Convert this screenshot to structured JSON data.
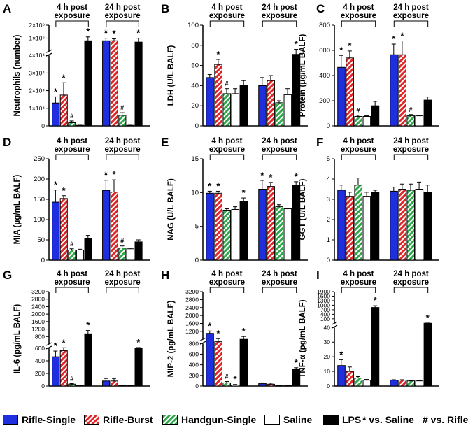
{
  "colors": {
    "rifle_single": "#1f2fe0",
    "rifle_burst": "#e02626",
    "handgun_single": "#2fa84a",
    "saline": "#ffffff",
    "lps": "#000000"
  },
  "legend": {
    "entries": [
      {
        "key": "rifle_single",
        "label": "Rifle-Single",
        "pattern": "solid"
      },
      {
        "key": "rifle_burst",
        "label": "Rifle-Burst",
        "pattern": "hatch"
      },
      {
        "key": "handgun_single",
        "label": "Handgun-Single",
        "pattern": "hatch"
      },
      {
        "key": "saline",
        "label": "Saline",
        "pattern": "solid"
      },
      {
        "key": "lps",
        "label": "LPS",
        "pattern": "solid"
      }
    ],
    "note_saline": "* vs. Saline",
    "note_rifle": "# vs. Rifle"
  },
  "chart_data": [
    {
      "panel": "A",
      "type": "bar",
      "ylabel": "Neutrophils (number)",
      "groups": [
        "4 h post exposure",
        "24 h post exposure"
      ],
      "series": [
        "Rifle-Single",
        "Rifle-Burst",
        "Handgun-Single",
        "Saline",
        "LPS"
      ],
      "broken_axis": true,
      "lower_ticks": [
        "0",
        "1×10⁴",
        "2×10⁴",
        "3×10⁴",
        "4×10⁴"
      ],
      "upper_ticks": [
        "1×10⁶",
        "2×10⁶"
      ],
      "values": [
        [
          13000,
          17500,
          1800,
          300,
          1400000
        ],
        [
          1400000,
          1400000,
          6000,
          300,
          1350000
        ]
      ],
      "errors": [
        [
          3500,
          7000,
          1000,
          100,
          150000
        ],
        [
          100000,
          80000,
          1500,
          100,
          150000
        ]
      ],
      "marks": [
        [
          "*",
          "*",
          "#",
          "",
          "*"
        ],
        [
          "*",
          "*",
          "#",
          "",
          "*"
        ]
      ]
    },
    {
      "panel": "B",
      "type": "bar",
      "ylabel": "LDH (U/L BALF)",
      "groups": [
        "4 h post exposure",
        "24 h post exposure"
      ],
      "ylim": [
        0,
        100
      ],
      "ticks": [
        "0",
        "20",
        "40",
        "60",
        "80",
        "100"
      ],
      "values": [
        [
          48,
          61,
          32,
          32,
          40
        ],
        [
          40,
          45,
          23,
          31,
          71
        ]
      ],
      "errors": [
        [
          3,
          5,
          5,
          5,
          5
        ],
        [
          8,
          5,
          2,
          6,
          5
        ]
      ],
      "marks": [
        [
          "",
          "*",
          "#",
          "",
          ""
        ],
        [
          "",
          "",
          "",
          "",
          "*"
        ]
      ]
    },
    {
      "panel": "C",
      "type": "bar",
      "ylabel": "Protein (μg/mL BALF)",
      "groups": [
        "4 h post exposure",
        "24 h post exposure"
      ],
      "ylim": [
        0,
        800
      ],
      "ticks": [
        "0",
        "200",
        "400",
        "600",
        "800"
      ],
      "values": [
        [
          465,
          540,
          75,
          75,
          160
        ],
        [
          565,
          565,
          80,
          80,
          205
        ]
      ],
      "errors": [
        [
          95,
          55,
          10,
          5,
          35
        ],
        [
          85,
          110,
          10,
          5,
          25
        ]
      ],
      "marks": [
        [
          "*",
          "*",
          "#",
          "",
          ""
        ],
        [
          "*",
          "*",
          "#",
          "",
          ""
        ]
      ]
    },
    {
      "panel": "D",
      "type": "bar",
      "ylabel": "MIA (μg/mL BALF)",
      "groups": [
        "4 h post exposure",
        "24 h post exposure"
      ],
      "ylim": [
        0,
        250
      ],
      "ticks": [
        "0",
        "50",
        "100",
        "150",
        "200",
        "250"
      ],
      "values": [
        [
          143,
          152,
          25,
          25,
          53
        ],
        [
          172,
          168,
          30,
          28,
          45
        ]
      ],
      "errors": [
        [
          30,
          7,
          3,
          2,
          8
        ],
        [
          25,
          30,
          5,
          2,
          5
        ]
      ],
      "marks": [
        [
          "*",
          "*",
          "#",
          "",
          ""
        ],
        [
          "*",
          "*",
          "#",
          "",
          ""
        ]
      ]
    },
    {
      "panel": "E",
      "type": "bar",
      "ylabel": "NAG (U/L BALF)",
      "groups": [
        "4 h post exposure",
        "24 h post exposure"
      ],
      "ylim": [
        0,
        15
      ],
      "ticks": [
        "0",
        "5",
        "10",
        "15"
      ],
      "values": [
        [
          9.9,
          9.9,
          7.4,
          7.5,
          8.7
        ],
        [
          10.5,
          10.9,
          7.9,
          7.6,
          11.1
        ]
      ],
      "errors": [
        [
          0.3,
          0.3,
          0.2,
          0.4,
          0.5
        ],
        [
          1.3,
          0.6,
          0.3,
          0.1,
          0.5
        ]
      ],
      "marks": [
        [
          "*",
          "*",
          "",
          "",
          "*"
        ],
        [
          "*",
          "*",
          "",
          "",
          "*"
        ]
      ]
    },
    {
      "panel": "F",
      "type": "bar",
      "ylabel": "GGT (U/L BALF)",
      "groups": [
        "4 h post exposure",
        "24 h post exposure"
      ],
      "ylim": [
        0,
        5
      ],
      "ticks": [
        "0",
        "1",
        "2",
        "3",
        "4",
        "5"
      ],
      "values": [
        [
          3.45,
          3.15,
          3.7,
          3.15,
          3.35
        ],
        [
          3.4,
          3.5,
          3.45,
          3.5,
          3.35
        ]
      ],
      "errors": [
        [
          0.25,
          0.2,
          0.35,
          0.2,
          0.1
        ],
        [
          0.2,
          0.25,
          0.3,
          0.35,
          0.35
        ]
      ],
      "marks": [
        [
          "",
          "",
          "",
          "",
          ""
        ],
        [
          "",
          "",
          "",
          "",
          ""
        ]
      ]
    },
    {
      "panel": "G",
      "type": "bar",
      "ylabel": "IL-6 (pg/mL BALF)",
      "groups": [
        "4 h post exposure",
        "24 h post exposure"
      ],
      "broken_axis": true,
      "lower_ticks": [
        "0",
        "200",
        "400",
        "600"
      ],
      "upper_ticks": [
        "800",
        "1200",
        "1600",
        "2000",
        "2400",
        "2800",
        "3200"
      ],
      "values": [
        [
          465,
          560,
          30,
          10,
          1270
        ],
        [
          80,
          80,
          5,
          5,
          600
        ]
      ],
      "errors": [
        [
          90,
          70,
          10,
          3,
          150
        ],
        [
          40,
          40,
          2,
          2,
          40
        ]
      ],
      "marks": [
        [
          "*",
          "*",
          "#",
          "",
          "*"
        ],
        [
          "",
          "",
          "",
          "",
          "*"
        ]
      ]
    },
    {
      "panel": "H",
      "type": "bar",
      "ylabel": "MIP-2 (pg/mL BALF)",
      "groups": [
        "4 h post exposure",
        "24 h post exposure"
      ],
      "broken_axis": true,
      "lower_ticks": [
        "0",
        "200",
        "400",
        "600",
        "800"
      ],
      "upper_ticks": [
        "1200",
        "1600",
        "2000",
        "2400",
        "2800",
        "3200"
      ],
      "values": [
        [
          1450,
          1100,
          60,
          20,
          1200
        ],
        [
          45,
          35,
          5,
          5,
          310
        ]
      ],
      "errors": [
        [
          100,
          130,
          25,
          10,
          120
        ],
        [
          15,
          20,
          3,
          3,
          35
        ]
      ],
      "marks": [
        [
          "*",
          "*",
          "#",
          "*",
          "*"
        ],
        [
          "",
          "",
          "",
          "",
          "*"
        ]
      ]
    },
    {
      "panel": "I",
      "type": "bar",
      "ylabel": "TNF-α (pg/mL BALF)",
      "groups": [
        "4 h post exposure",
        "24 h post exposure"
      ],
      "broken_axis": true,
      "lower_ticks": [
        "0",
        "10",
        "20",
        "30",
        "40"
      ],
      "upper_ticks": [
        "100",
        "400",
        "700",
        "1000",
        "1300",
        "1600",
        "1900"
      ],
      "values": [
        [
          14,
          10,
          5.5,
          4,
          1000
        ],
        [
          4,
          4,
          3.5,
          3.5,
          100
        ]
      ],
      "errors": [
        [
          4,
          3,
          1,
          0.5,
          100
        ],
        [
          0.3,
          0.3,
          0.3,
          0.3,
          15
        ]
      ],
      "marks": [
        [
          "*",
          "",
          "",
          "",
          "*"
        ],
        [
          "",
          "",
          "",
          "",
          "*"
        ]
      ]
    }
  ]
}
